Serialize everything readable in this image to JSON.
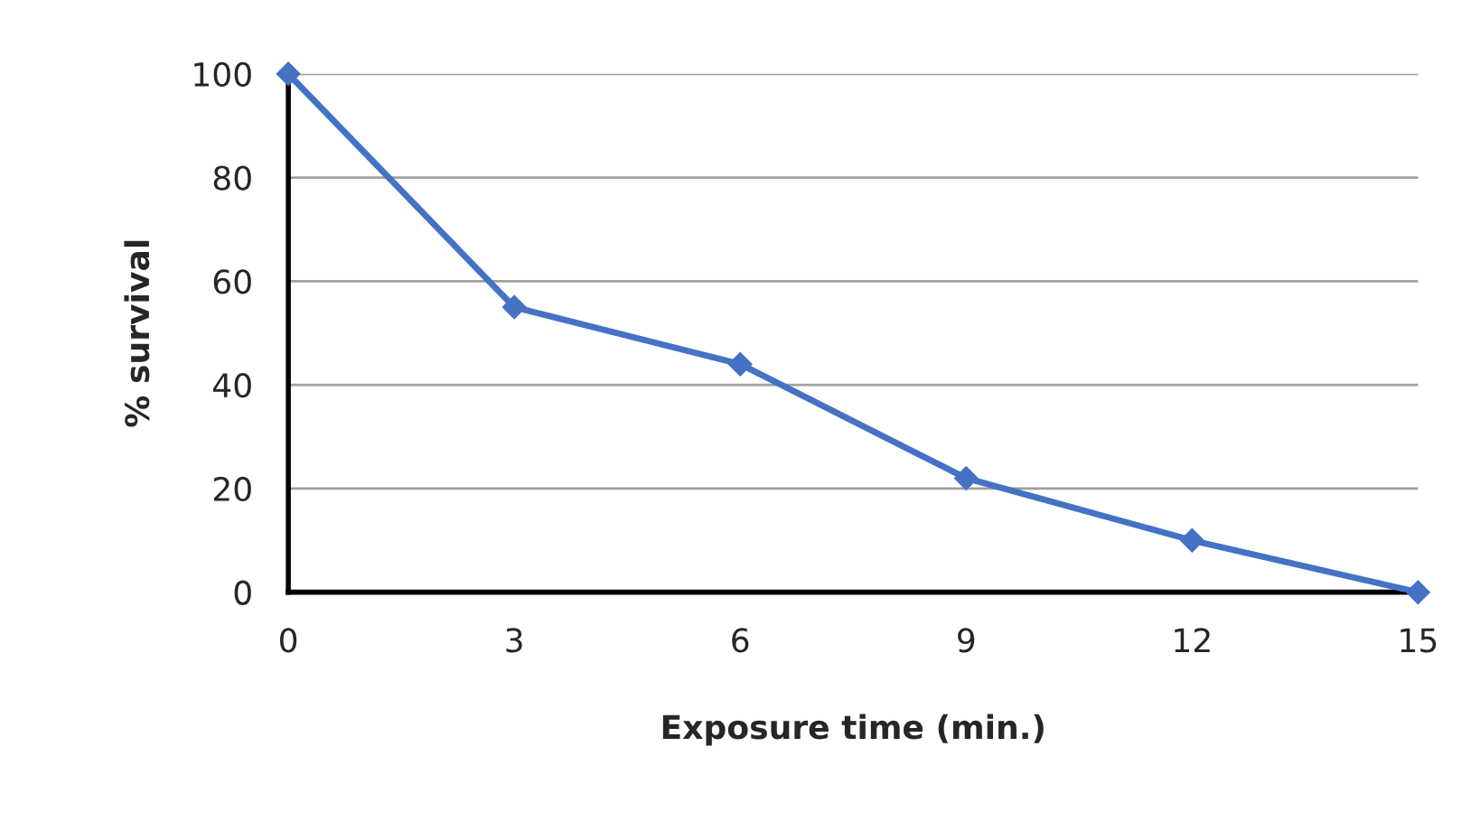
{
  "chart_data": {
    "type": "line",
    "xlabel": "Exposure time (min.)",
    "ylabel": "% survival",
    "x": [
      0,
      3,
      6,
      9,
      12,
      15
    ],
    "series": [
      {
        "color": "#4472c4",
        "values": [
          100,
          55,
          44,
          22,
          10,
          0
        ]
      }
    ],
    "xlim": [
      0,
      15
    ],
    "xticks": [
      0,
      3,
      6,
      9,
      12,
      15
    ],
    "ylim": [
      0,
      100
    ],
    "yticks": [
      0,
      20,
      40,
      60,
      80,
      100
    ],
    "grid": "y",
    "marker": "diamond",
    "line_style": "solid"
  }
}
